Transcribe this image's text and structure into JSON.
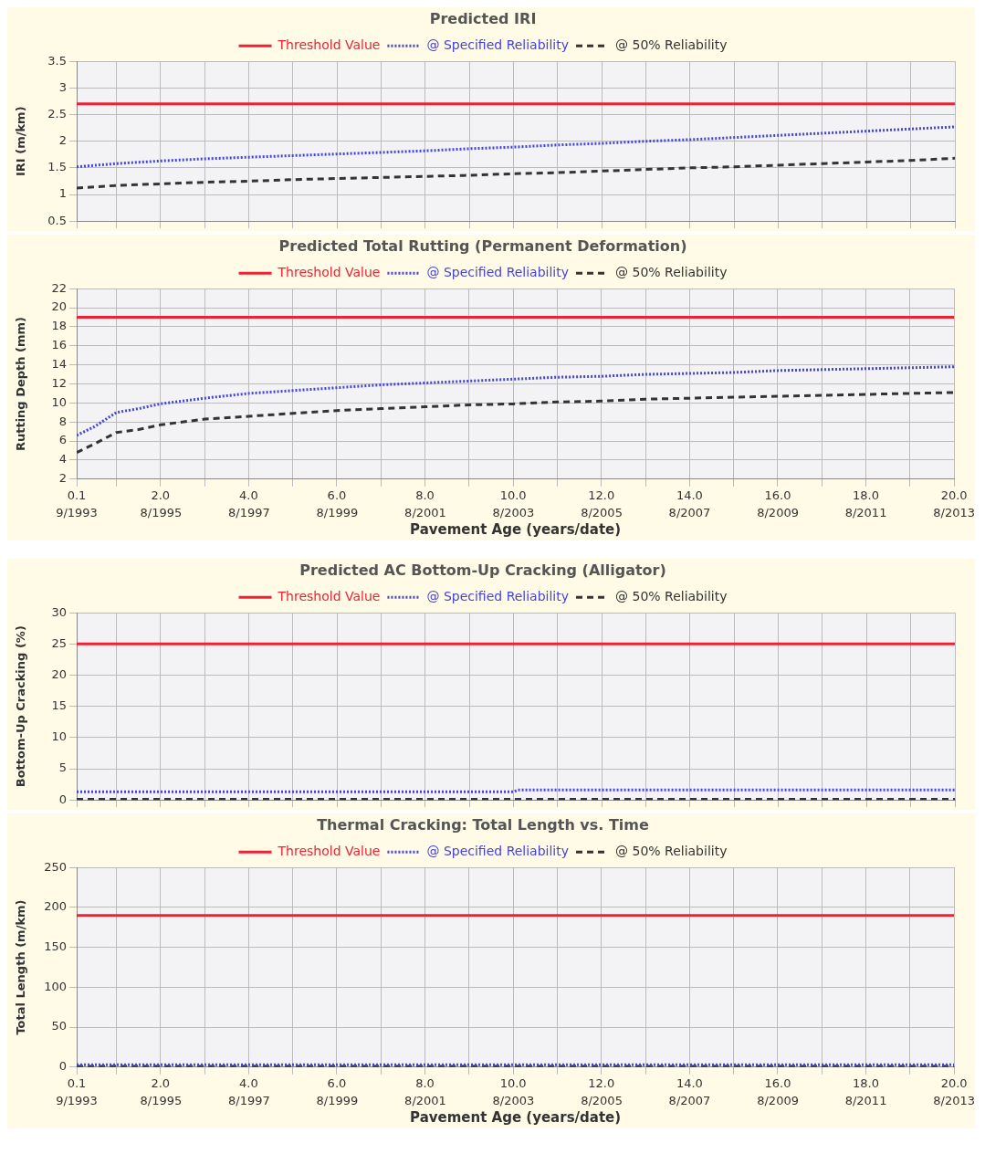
{
  "chart_data": [
    {
      "type": "line",
      "title": "Predicted IRI",
      "ylabel": "IRI (m/km)",
      "xlim": [
        0.1,
        20
      ],
      "ylim": [
        0.5,
        3.5
      ],
      "xticks": [
        0.1,
        1,
        2,
        3,
        4,
        5,
        6,
        7,
        8,
        9,
        10,
        11,
        12,
        13,
        14,
        15,
        16,
        17,
        18,
        19,
        20
      ],
      "yticks": [
        0.5,
        1,
        1.5,
        2,
        2.5,
        3,
        3.5
      ],
      "tick_labels": "y",
      "grid": true,
      "legend": "top",
      "marker": "none",
      "series": [
        {
          "name": "Threshold Value",
          "color": "#ee2233",
          "line_style": "solid",
          "x": [
            0.1,
            20
          ],
          "values": [
            2.7,
            2.7
          ]
        },
        {
          "name": "@ Specified Reliability",
          "color": "#4444dd",
          "line_style": "dotted",
          "x": [
            0.1,
            1,
            2,
            3,
            4,
            5,
            6,
            7,
            8,
            9,
            10,
            11,
            12,
            13,
            14,
            15,
            16,
            17,
            18,
            19,
            20
          ],
          "values": [
            1.52,
            1.58,
            1.63,
            1.67,
            1.7,
            1.73,
            1.76,
            1.79,
            1.82,
            1.86,
            1.89,
            1.93,
            1.96,
            2.0,
            2.03,
            2.07,
            2.11,
            2.15,
            2.19,
            2.23,
            2.27
          ]
        },
        {
          "name": "@ 50% Reliability",
          "color": "#333333",
          "line_style": "dashed",
          "x": [
            0.1,
            1,
            2,
            3,
            4,
            5,
            6,
            7,
            8,
            9,
            10,
            11,
            12,
            13,
            14,
            15,
            16,
            17,
            18,
            19,
            20
          ],
          "values": [
            1.12,
            1.17,
            1.2,
            1.23,
            1.25,
            1.28,
            1.3,
            1.32,
            1.34,
            1.36,
            1.39,
            1.41,
            1.44,
            1.47,
            1.5,
            1.52,
            1.55,
            1.58,
            1.61,
            1.64,
            1.68
          ]
        }
      ]
    },
    {
      "type": "line",
      "title": "Predicted Total Rutting (Permanent Deformation)",
      "xlabel": "Pavement Age (years/date)",
      "ylabel": "Rutting Depth (mm)",
      "xlim": [
        0.1,
        20
      ],
      "ylim": [
        2,
        22
      ],
      "xticks": [
        0.1,
        {
          "value": 1,
          "label": null
        },
        {
          "value": 2,
          "label": "2.0"
        },
        {
          "value": 3,
          "label": null
        },
        {
          "value": 4,
          "label": "4.0"
        },
        {
          "value": 5,
          "label": null
        },
        {
          "value": 6,
          "label": "6.0"
        },
        {
          "value": 7,
          "label": null
        },
        {
          "value": 8,
          "label": "8.0"
        },
        {
          "value": 9,
          "label": null
        },
        {
          "value": 10,
          "label": "10.0"
        },
        {
          "value": 11,
          "label": null
        },
        {
          "value": 12,
          "label": "12.0"
        },
        {
          "value": 13,
          "label": null
        },
        {
          "value": 14,
          "label": "14.0"
        },
        {
          "value": 15,
          "label": null
        },
        {
          "value": 16,
          "label": "16.0"
        },
        {
          "value": 17,
          "label": null
        },
        {
          "value": 18,
          "label": "18.0"
        },
        {
          "value": 19,
          "label": null
        },
        {
          "value": 20,
          "label": "20.0"
        }
      ],
      "x2lim": [
        "1993-09",
        "2013-08"
      ],
      "x2ticks": [
        {
          "value": "1993-09",
          "label": "9/1993"
        },
        {
          "value": "1995-08",
          "label": "8/1995"
        },
        {
          "value": "1997-08",
          "label": "8/1997"
        },
        {
          "value": "1999-08",
          "label": "8/1999"
        },
        {
          "value": "2001-08",
          "label": "8/2001"
        },
        {
          "value": "2003-08",
          "label": "8/2003"
        },
        {
          "value": "2005-08",
          "label": "8/2005"
        },
        {
          "value": "2007-08",
          "label": "8/2007"
        },
        {
          "value": "2009-08",
          "label": "8/2009"
        },
        {
          "value": "2011-08",
          "label": "8/2011"
        },
        {
          "value": "2013-08",
          "label": "8/2013"
        }
      ],
      "yticks": [
        2,
        4,
        6,
        8,
        10,
        12,
        14,
        16,
        18,
        20,
        22
      ],
      "grid": true,
      "legend": "top",
      "marker": "none",
      "series": [
        {
          "name": "Threshold Value",
          "color": "#ee2233",
          "line_style": "solid",
          "x": [
            0.1,
            20
          ],
          "values": [
            19,
            19
          ]
        },
        {
          "name": "@ Specified Reliability",
          "color": "#4444dd",
          "line_style": "dotted",
          "x": [
            0.1,
            0.5,
            1,
            1.5,
            2,
            3,
            4,
            5,
            6,
            7,
            8,
            9,
            10,
            11,
            12,
            13,
            14,
            15,
            16,
            17,
            18,
            19,
            20
          ],
          "values": [
            6.6,
            7.5,
            9.0,
            9.4,
            9.9,
            10.5,
            11.0,
            11.3,
            11.6,
            11.9,
            12.1,
            12.3,
            12.5,
            12.7,
            12.8,
            13.0,
            13.1,
            13.2,
            13.4,
            13.5,
            13.6,
            13.7,
            13.8
          ]
        },
        {
          "name": "@ 50% Reliability",
          "color": "#333333",
          "line_style": "dashed",
          "x": [
            0.1,
            0.5,
            1,
            1.5,
            2,
            3,
            4,
            5,
            6,
            7,
            8,
            9,
            10,
            11,
            12,
            13,
            14,
            15,
            16,
            17,
            18,
            19,
            20
          ],
          "values": [
            4.8,
            5.7,
            6.9,
            7.2,
            7.7,
            8.3,
            8.6,
            8.9,
            9.2,
            9.4,
            9.6,
            9.8,
            9.9,
            10.1,
            10.2,
            10.4,
            10.5,
            10.6,
            10.7,
            10.8,
            10.9,
            11.0,
            11.1
          ]
        }
      ]
    },
    {
      "type": "line",
      "title": "Predicted AC Bottom-Up Cracking (Alligator)",
      "ylabel": "Bottom-Up Cracking (%)",
      "xlim": [
        0.1,
        20
      ],
      "ylim": [
        0,
        30
      ],
      "xticks": [
        0.1,
        1,
        2,
        3,
        4,
        5,
        6,
        7,
        8,
        9,
        10,
        11,
        12,
        13,
        14,
        15,
        16,
        17,
        18,
        19,
        20
      ],
      "yticks": [
        0,
        5,
        10,
        15,
        20,
        25,
        30
      ],
      "tick_labels": "y",
      "grid": true,
      "legend": "top",
      "marker": "none",
      "series": [
        {
          "name": "Threshold Value",
          "color": "#ee2233",
          "line_style": "solid",
          "x": [
            0.1,
            20
          ],
          "values": [
            25,
            25
          ]
        },
        {
          "name": "@ Specified Reliability",
          "color": "#4444dd",
          "line_style": "dotted",
          "x": [
            0.1,
            10,
            10.1,
            20
          ],
          "values": [
            1.3,
            1.3,
            1.6,
            1.6
          ]
        },
        {
          "name": "@ 50% Reliability",
          "color": "#333333",
          "line_style": "dashed",
          "x": [
            0.1,
            20
          ],
          "values": [
            0.1,
            0.1
          ]
        }
      ]
    },
    {
      "type": "line",
      "title": "Thermal Cracking: Total Length vs. Time",
      "xlabel": "Pavement Age (years/date)",
      "ylabel": "Total Length (m/km)",
      "xlim": [
        0.1,
        20
      ],
      "ylim": [
        0,
        250
      ],
      "xticks": [
        0.1,
        {
          "value": 1,
          "label": null
        },
        {
          "value": 2,
          "label": "2.0"
        },
        {
          "value": 3,
          "label": null
        },
        {
          "value": 4,
          "label": "4.0"
        },
        {
          "value": 5,
          "label": null
        },
        {
          "value": 6,
          "label": "6.0"
        },
        {
          "value": 7,
          "label": null
        },
        {
          "value": 8,
          "label": "8.0"
        },
        {
          "value": 9,
          "label": null
        },
        {
          "value": 10,
          "label": "10.0"
        },
        {
          "value": 11,
          "label": null
        },
        {
          "value": 12,
          "label": "12.0"
        },
        {
          "value": 13,
          "label": null
        },
        {
          "value": 14,
          "label": "14.0"
        },
        {
          "value": 15,
          "label": null
        },
        {
          "value": 16,
          "label": "16.0"
        },
        {
          "value": 17,
          "label": null
        },
        {
          "value": 18,
          "label": "18.0"
        },
        {
          "value": 19,
          "label": null
        },
        {
          "value": 20,
          "label": "20.0"
        }
      ],
      "x2lim": [
        "1993-09",
        "2013-08"
      ],
      "x2ticks": [
        {
          "value": "1993-09",
          "label": "9/1993"
        },
        {
          "value": "1995-08",
          "label": "8/1995"
        },
        {
          "value": "1997-08",
          "label": "8/1997"
        },
        {
          "value": "1999-08",
          "label": "8/1999"
        },
        {
          "value": "2001-08",
          "label": "8/2001"
        },
        {
          "value": "2003-08",
          "label": "8/2003"
        },
        {
          "value": "2005-08",
          "label": "8/2005"
        },
        {
          "value": "2007-08",
          "label": "8/2007"
        },
        {
          "value": "2009-08",
          "label": "8/2009"
        },
        {
          "value": "2011-08",
          "label": "8/2011"
        },
        {
          "value": "2013-08",
          "label": "8/2013"
        }
      ],
      "yticks": [
        0,
        50,
        100,
        150,
        200,
        250
      ],
      "grid": true,
      "legend": "top",
      "marker": "none",
      "series": [
        {
          "name": "Threshold Value",
          "color": "#ee2233",
          "line_style": "solid",
          "x": [
            0.1,
            20
          ],
          "values": [
            190,
            190
          ]
        },
        {
          "name": "@ Specified Reliability",
          "color": "#4444dd",
          "line_style": "dotted",
          "x": [
            0.1,
            20
          ],
          "values": [
            3,
            3
          ]
        },
        {
          "name": "@ 50% Reliability",
          "color": "#333333",
          "line_style": "dashed",
          "x": [
            0.1,
            20
          ],
          "values": [
            1,
            1
          ]
        }
      ]
    }
  ]
}
